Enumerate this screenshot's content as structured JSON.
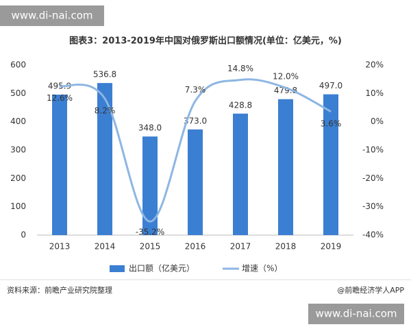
{
  "watermarks": [
    "www.di-nai.com",
    "www.di-nai.com"
  ],
  "source": "资料来源：前瞻产业研究院整理",
  "credit": "@前瞻经济学人APP",
  "chart_data": {
    "type": "bar-line",
    "title": "图表3：2013-2019年中国对俄罗斯出口额情况(单位：亿美元，%)",
    "categories": [
      "2013",
      "2014",
      "2015",
      "2016",
      "2017",
      "2018",
      "2019"
    ],
    "series": [
      {
        "name": "出口额（亿美元）",
        "type": "bar",
        "color": "#3b7fd2",
        "values": [
          495.9,
          536.8,
          348.0,
          373.0,
          428.8,
          479.8,
          497.0
        ],
        "value_labels": [
          "495.9",
          "536.8",
          "348.0",
          "373.0",
          "428.8",
          "479.8",
          "497.0"
        ]
      },
      {
        "name": "增速（%）",
        "type": "line",
        "axis": "y2",
        "color": "#8db6e3",
        "smooth": true,
        "values": [
          12.6,
          8.2,
          -35.2,
          7.3,
          14.8,
          12.0,
          3.6
        ],
        "value_labels": [
          "12.6%",
          "8.2%",
          "-35.2%",
          "7.3%",
          "14.8%",
          "12.0%",
          "3.6%"
        ]
      }
    ],
    "ylim": [
      0,
      600
    ],
    "yticks": [
      0,
      100,
      200,
      300,
      400,
      500,
      600
    ],
    "y2lim": [
      -40,
      20
    ],
    "y2ticks": [
      {
        "value": -40,
        "label": "-40%"
      },
      {
        "value": -30,
        "label": "-30%"
      },
      {
        "value": -20,
        "label": "-20%"
      },
      {
        "value": -10,
        "label": "-10%"
      },
      {
        "value": 0,
        "label": "0%"
      },
      {
        "value": 10,
        "label": "10%"
      },
      {
        "value": 20,
        "label": "20%"
      }
    ],
    "grid": false,
    "legend": "bottom"
  }
}
